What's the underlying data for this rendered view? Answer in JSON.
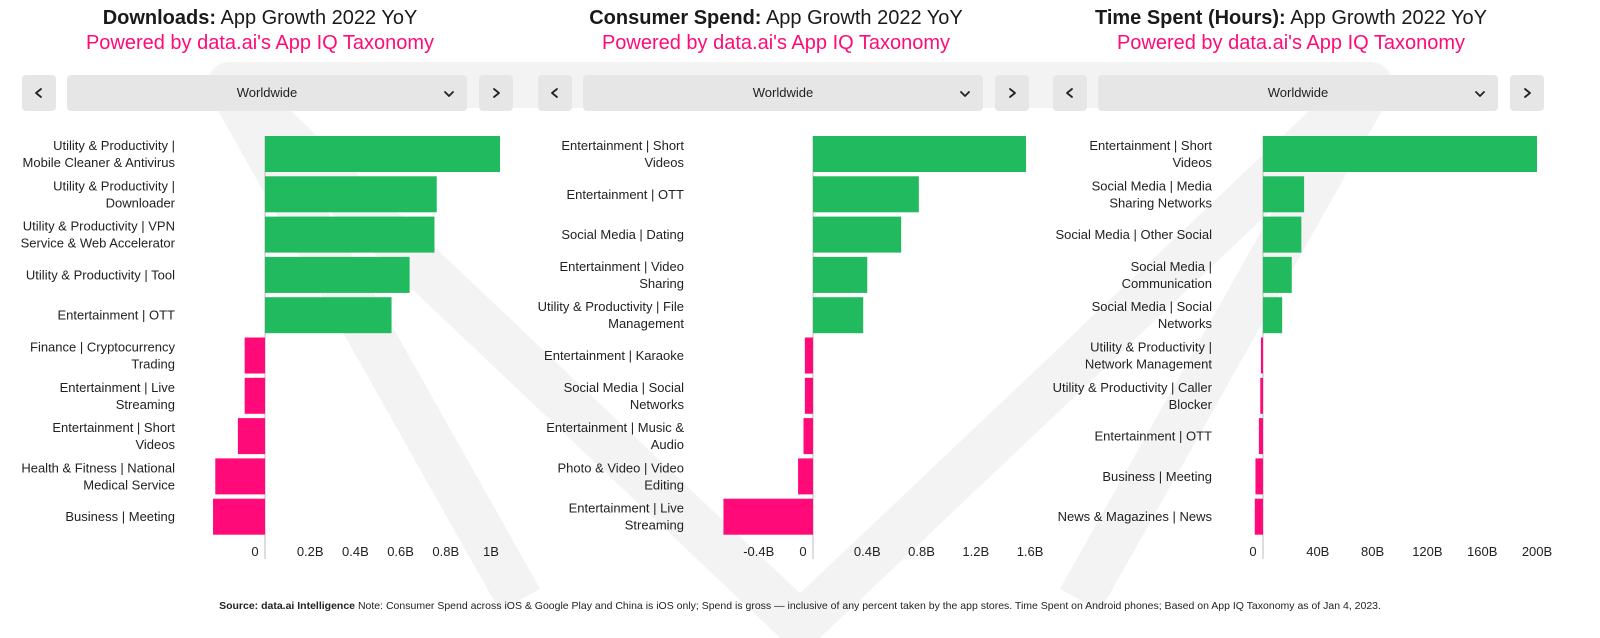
{
  "source": {
    "label": "Source: data.ai Intelligence",
    "note": "Note: Consumer Spend across iOS & Google Play and China is iOS only; Spend is gross — inclusive of any percent taken by the app stores. Time Spent on Android phones; Based on App IQ Taxonomy as of Jan 4, 2023."
  },
  "colors": {
    "positive": "#21ba5f",
    "negative": "#ff0a78",
    "subtitle": "#ff0a78",
    "control": "#e6e6e6"
  },
  "icons": {
    "prev": "chevron-left-icon",
    "next": "chevron-right-icon",
    "dropdown": "chevron-down-icon"
  },
  "panels": [
    {
      "title_bold": "Downloads:",
      "title_rest": " App Growth 2022 YoY",
      "subtitle": "Powered by data.ai's App IQ Taxonomy",
      "region": "Worldwide"
    },
    {
      "title_bold": "Consumer Spend:",
      "title_rest": " App Growth 2022 YoY",
      "subtitle": "Powered by data.ai's App IQ Taxonomy",
      "region": "Worldwide"
    },
    {
      "title_bold": "Time Spent (Hours):",
      "title_rest": " App Growth 2022 YoY",
      "subtitle": "Powered by data.ai's App IQ Taxonomy",
      "region": "Worldwide"
    }
  ],
  "chart_data": [
    {
      "type": "bar",
      "orientation": "horizontal",
      "title": "Downloads: App Growth 2022 YoY",
      "xlim": [
        -0.25,
        1.1
      ],
      "ticks": [
        0,
        0.2,
        0.4,
        0.6,
        0.8,
        1.0
      ],
      "tick_labels": [
        "0",
        "0.2B",
        "0.4B",
        "0.6B",
        "0.8B",
        "1B"
      ],
      "categories": [
        [
          "Utility & Productivity |",
          "Mobile Cleaner & Antivirus"
        ],
        [
          "Utility & Productivity |",
          "Downloader"
        ],
        [
          "Utility & Productivity | VPN",
          "Service & Web Accelerator"
        ],
        [
          "Utility & Productivity | Tool"
        ],
        [
          "Entertainment | OTT"
        ],
        [
          "Finance | Cryptocurrency",
          "Trading"
        ],
        [
          "Entertainment | Live",
          "Streaming"
        ],
        [
          "Entertainment | Short",
          "Videos"
        ],
        [
          "Health & Fitness | National",
          "Medical Service"
        ],
        [
          "Business | Meeting"
        ]
      ],
      "values": [
        1.04,
        0.76,
        0.75,
        0.64,
        0.56,
        -0.09,
        -0.09,
        -0.12,
        -0.22,
        -0.23
      ]
    },
    {
      "type": "bar",
      "orientation": "horizontal",
      "title": "Consumer Spend: App Growth 2022 YoY",
      "xlim": [
        -0.55,
        1.72
      ],
      "ticks": [
        -0.4,
        0,
        0.4,
        0.8,
        1.2,
        1.6
      ],
      "tick_labels": [
        "-0.4B",
        "0",
        "0.4B",
        "0.8B",
        "1.2B",
        "1.6B"
      ],
      "categories": [
        [
          "Entertainment | Short",
          "Videos"
        ],
        [
          "Entertainment | OTT"
        ],
        [
          "Social Media | Dating"
        ],
        [
          "Entertainment | Video",
          "Sharing"
        ],
        [
          "Utility & Productivity | File",
          "Management"
        ],
        [
          "Entertainment | Karaoke"
        ],
        [
          "Social Media | Social",
          "Networks"
        ],
        [
          "Entertainment | Music &",
          "Audio"
        ],
        [
          "Photo & Video | Video",
          "Editing"
        ],
        [
          "Entertainment | Live",
          "Streaming"
        ]
      ],
      "values": [
        1.57,
        0.78,
        0.65,
        0.4,
        0.37,
        -0.06,
        -0.06,
        -0.07,
        -0.11,
        -0.66
      ]
    },
    {
      "type": "bar",
      "orientation": "horizontal",
      "title": "Time Spent (Hours): App Growth 2022 YoY",
      "xlim": [
        -10,
        210
      ],
      "ticks": [
        0,
        40,
        80,
        120,
        160,
        200
      ],
      "tick_labels": [
        "0",
        "40B",
        "80B",
        "120B",
        "160B",
        "200B"
      ],
      "categories": [
        [
          "Entertainment | Short",
          "Videos"
        ],
        [
          "Social Media | Media",
          "Sharing Networks"
        ],
        [
          "Social Media | Other Social"
        ],
        [
          "Social Media |",
          "Communication"
        ],
        [
          "Social Media | Social",
          "Networks"
        ],
        [
          "Utility & Productivity |",
          "Network Management"
        ],
        [
          "Utility & Productivity | Caller",
          "Blocker"
        ],
        [
          "Entertainment | OTT"
        ],
        [
          "Business | Meeting"
        ],
        [
          "News & Magazines | News"
        ]
      ],
      "values": [
        200,
        30,
        28,
        21,
        14,
        -1.5,
        -2,
        -3,
        -5.5,
        -6
      ]
    }
  ]
}
